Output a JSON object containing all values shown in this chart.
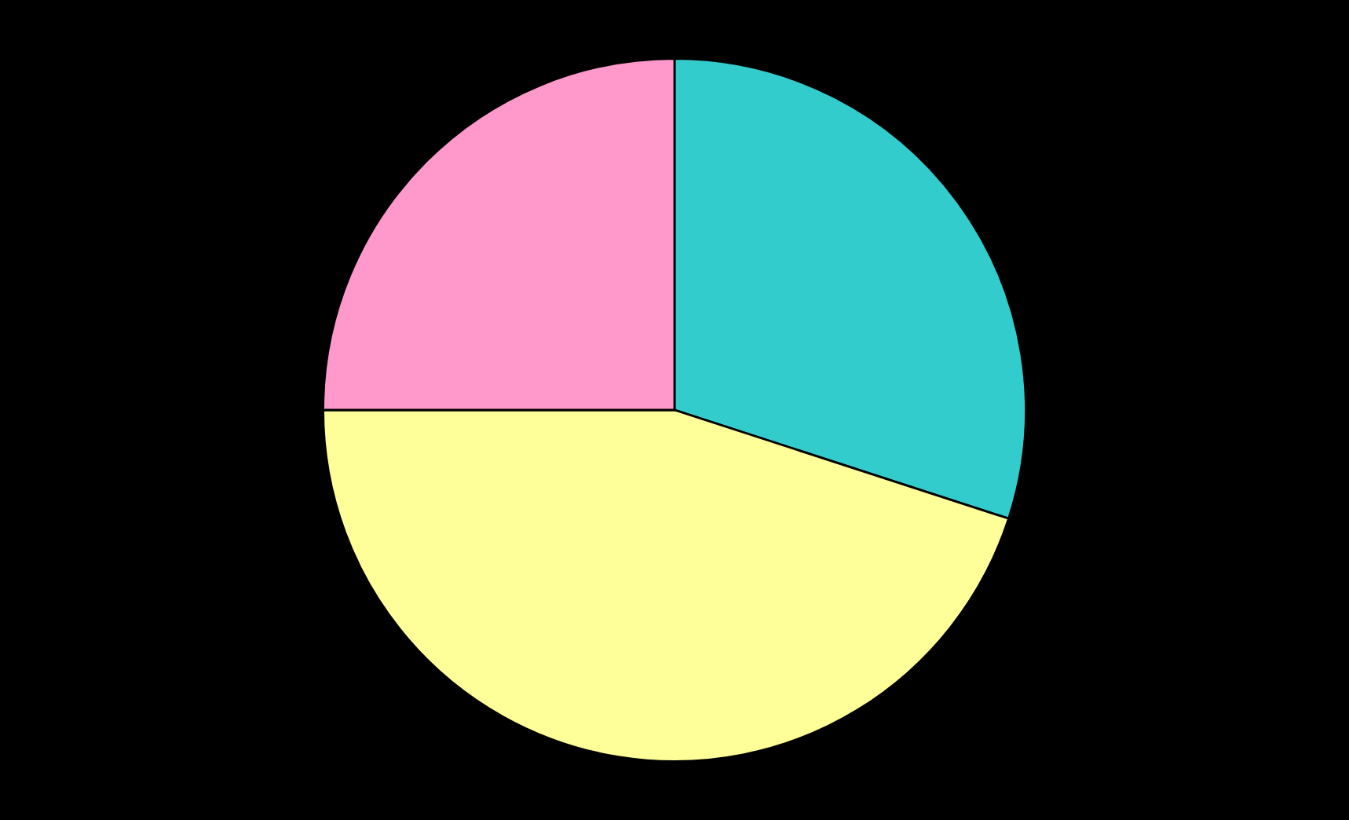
{
  "chart_data": {
    "type": "pie",
    "categories": [
      null,
      null,
      null
    ],
    "values": [
      30,
      45,
      25
    ],
    "colors": [
      "#33cccc",
      "#ffff99",
      "#ff99cc"
    ]
  }
}
